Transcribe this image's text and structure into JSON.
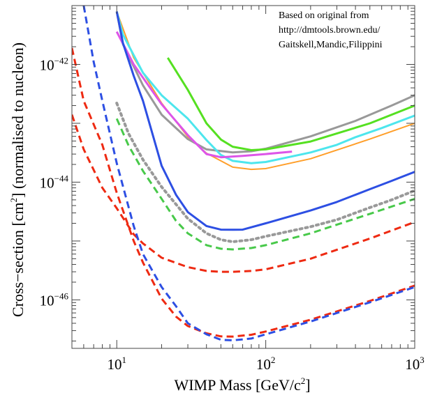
{
  "chart_data": {
    "type": "line",
    "title": "",
    "xlabel": "WIMP Mass [GeV/c",
    "xlabel_sup": "2",
    "xlabel_tail": "]",
    "ylabel": "Cross−section [cm",
    "ylabel_sup": "2",
    "ylabel_tail": "] (normalised to nucleon)",
    "xscale": "log",
    "yscale": "log",
    "xlim": [
      5,
      1000
    ],
    "ylim": [
      1.5e-47,
      1e-41
    ],
    "grid": false,
    "legend": "none",
    "x_ticks": [
      {
        "value": 10,
        "base": "10",
        "exp": "1"
      },
      {
        "value": 100,
        "base": "10",
        "exp": "2"
      },
      {
        "value": 1000,
        "base": "10",
        "exp": "3"
      }
    ],
    "y_ticks": [
      {
        "value": 1e-42,
        "base": "10",
        "exp": "−42"
      },
      {
        "value": 1e-44,
        "base": "10",
        "exp": "−44"
      },
      {
        "value": 1e-46,
        "base": "10",
        "exp": "−46"
      }
    ],
    "annotation": [
      "Based on original from",
      "http://dmtools.brown.edu/",
      "Gaitskell,Mandic,Filippini"
    ],
    "series": [
      {
        "color": "#ff9f2a",
        "style": "solid",
        "width": 2,
        "points": [
          [
            10,
            7.9e-42
          ],
          [
            13,
            1.3e-42
          ],
          [
            20,
            2.2e-43
          ],
          [
            30,
            5.9e-44
          ],
          [
            40,
            3.1e-44
          ],
          [
            60,
            1.8e-44
          ],
          [
            80,
            1.65e-44
          ],
          [
            100,
            1.7e-44
          ],
          [
            200,
            2.5e-44
          ],
          [
            500,
            5.4e-44
          ],
          [
            1000,
            1e-43
          ]
        ]
      },
      {
        "color": "#999999",
        "style": "solid",
        "width": 3,
        "points": [
          [
            10,
            7.9e-42
          ],
          [
            11,
            2.2e-42
          ],
          [
            15,
            4.4e-43
          ],
          [
            20,
            1.4e-43
          ],
          [
            30,
            5.4e-44
          ],
          [
            40,
            3.6e-44
          ],
          [
            60,
            3.2e-44
          ],
          [
            80,
            3.35e-44
          ],
          [
            100,
            3.7e-44
          ],
          [
            200,
            6e-44
          ],
          [
            400,
            1.1e-43
          ],
          [
            700,
            2e-43
          ],
          [
            1000,
            3e-43
          ]
        ]
      },
      {
        "color": "#55e021",
        "style": "solid",
        "width": 3,
        "points": [
          [
            22,
            1.3e-42
          ],
          [
            30,
            3.7e-43
          ],
          [
            40,
            1e-43
          ],
          [
            50,
            5.3e-44
          ],
          [
            60,
            4e-44
          ],
          [
            80,
            3.5e-44
          ],
          [
            100,
            3.6e-44
          ],
          [
            200,
            4.9e-44
          ],
          [
            500,
            1e-43
          ],
          [
            1000,
            2e-43
          ]
        ]
      },
      {
        "color": "#4de6ed",
        "style": "solid",
        "width": 3,
        "points": [
          [
            10,
            7.9e-42
          ],
          [
            11,
            3.2e-42
          ],
          [
            15,
            7.2e-43
          ],
          [
            20,
            3e-43
          ],
          [
            30,
            1.2e-43
          ],
          [
            40,
            5.2e-44
          ],
          [
            50,
            2.9e-44
          ],
          [
            60,
            2.3e-44
          ],
          [
            80,
            2.1e-44
          ],
          [
            100,
            2.2e-44
          ],
          [
            200,
            3.2e-44
          ],
          [
            300,
            4.3e-44
          ],
          [
            400,
            5.8e-44
          ],
          [
            600,
            8.3e-44
          ],
          [
            1000,
            1.35e-43
          ]
        ]
      },
      {
        "color": "#dd55e8",
        "style": "solid",
        "width": 3,
        "points": [
          [
            10,
            3.6e-42
          ],
          [
            13,
            1e-42
          ],
          [
            20,
            2.1e-43
          ],
          [
            30,
            6.3e-44
          ],
          [
            40,
            3e-44
          ],
          [
            50,
            2.65e-44
          ],
          [
            70,
            2.8e-44
          ],
          [
            100,
            3e-44
          ],
          [
            150,
            3.3e-44
          ]
        ]
      },
      {
        "color": "#2d4fe3",
        "style": "solid",
        "width": 3,
        "points": [
          [
            10,
            7.9e-42
          ],
          [
            11,
            2.3e-42
          ],
          [
            13,
            6.4e-43
          ],
          [
            15,
            2.4e-43
          ],
          [
            20,
            1.9e-44
          ],
          [
            25,
            6.1e-45
          ],
          [
            30,
            3.1e-45
          ],
          [
            40,
            1.8e-45
          ],
          [
            50,
            1.56e-45
          ],
          [
            60,
            1.55e-45
          ],
          [
            70,
            1.56e-45
          ],
          [
            100,
            2e-45
          ],
          [
            200,
            3.3e-45
          ],
          [
            300,
            4.6e-45
          ],
          [
            500,
            7.6e-45
          ],
          [
            700,
            1.05e-44
          ],
          [
            1000,
            1.5e-44
          ]
        ]
      },
      {
        "color": "#999999",
        "style": "dotted",
        "width": 4,
        "points": [
          [
            10,
            2.2e-43
          ],
          [
            12,
            6.7e-44
          ],
          [
            15,
            2.4e-44
          ],
          [
            20,
            8.3e-45
          ],
          [
            30,
            2.4e-45
          ],
          [
            40,
            1.35e-45
          ],
          [
            50,
            1.05e-45
          ],
          [
            60,
            9.7e-46
          ],
          [
            80,
            1.05e-45
          ],
          [
            100,
            1.2e-45
          ],
          [
            200,
            1.75e-45
          ],
          [
            300,
            2.3e-45
          ],
          [
            500,
            3.7e-45
          ],
          [
            700,
            5e-45
          ],
          [
            1000,
            7.2e-45
          ]
        ]
      },
      {
        "color": "#48c94a",
        "style": "dashed",
        "width": 3,
        "points": [
          [
            10,
            1.2e-43
          ],
          [
            12,
            4.2e-44
          ],
          [
            15,
            1.55e-44
          ],
          [
            20,
            5.2e-45
          ],
          [
            25,
            2.2e-45
          ],
          [
            30,
            1.35e-45
          ],
          [
            40,
            8.5e-46
          ],
          [
            50,
            7.4e-46
          ],
          [
            60,
            7.2e-46
          ],
          [
            80,
            7.6e-46
          ],
          [
            100,
            8.5e-46
          ],
          [
            200,
            1.35e-45
          ],
          [
            500,
            2.9e-45
          ],
          [
            1000,
            5.2e-45
          ]
        ]
      },
      {
        "color": "#ee2a12",
        "style": "dashed",
        "width": 3,
        "points": [
          [
            5,
            1.4e-43
          ],
          [
            6,
            3.6e-44
          ],
          [
            8,
            8e-45
          ],
          [
            10,
            3.6e-45
          ],
          [
            13,
            1.3e-45
          ],
          [
            15,
            9.1e-46
          ],
          [
            20,
            5.2e-46
          ],
          [
            30,
            3.6e-46
          ],
          [
            40,
            3.1e-46
          ],
          [
            50,
            3e-46
          ],
          [
            60,
            3e-46
          ],
          [
            80,
            3.1e-46
          ],
          [
            100,
            3.3e-46
          ],
          [
            200,
            5e-46
          ],
          [
            500,
            1.1e-45
          ],
          [
            1000,
            2.1e-45
          ]
        ]
      },
      {
        "color": "#ee2a12",
        "style": "dashed",
        "width": 3,
        "points": [
          [
            5,
            1.9e-42
          ],
          [
            6,
            2.4e-43
          ],
          [
            8,
            4.3e-44
          ],
          [
            10,
            6.6e-45
          ],
          [
            13,
            1e-45
          ],
          [
            15,
            4.3e-46
          ],
          [
            20,
            1.05e-46
          ],
          [
            25,
            5.2e-47
          ],
          [
            30,
            3.6e-47
          ],
          [
            40,
            2.7e-47
          ],
          [
            50,
            2.4e-47
          ],
          [
            60,
            2.38e-47
          ],
          [
            80,
            2.55e-47
          ],
          [
            100,
            2.9e-47
          ],
          [
            200,
            4.6e-47
          ],
          [
            500,
            9.6e-47
          ],
          [
            1000,
            1.75e-46
          ]
        ]
      },
      {
        "color": "#2d4fe3",
        "style": "dashed",
        "width": 3,
        "points": [
          [
            6,
            1e-41
          ],
          [
            7,
            1.1e-42
          ],
          [
            8,
            2.4e-43
          ],
          [
            10,
            2.1e-44
          ],
          [
            13,
            1.8e-45
          ],
          [
            15,
            6e-46
          ],
          [
            20,
            1.65e-46
          ],
          [
            25,
            7.8e-47
          ],
          [
            30,
            4e-47
          ],
          [
            40,
            2.6e-47
          ],
          [
            50,
            2.1e-47
          ],
          [
            60,
            2.05e-47
          ],
          [
            80,
            2.2e-47
          ],
          [
            100,
            2.6e-47
          ],
          [
            200,
            4.3e-47
          ],
          [
            500,
            9.1e-47
          ],
          [
            1000,
            1.65e-46
          ]
        ]
      }
    ]
  }
}
